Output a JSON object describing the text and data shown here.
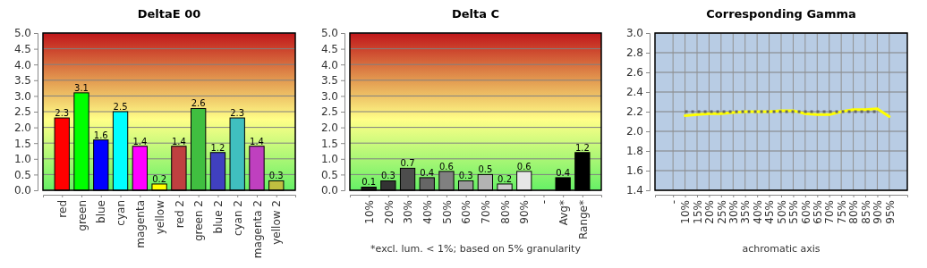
{
  "chart_data": [
    {
      "type": "bar",
      "title": "DeltaE 00",
      "categories": [
        "red",
        "green",
        "blue",
        "cyan",
        "magenta",
        "yellow",
        "red 2",
        "green 2",
        "blue 2",
        "cyan 2",
        "magenta 2",
        "yellow 2"
      ],
      "values": [
        2.3,
        3.1,
        1.6,
        2.5,
        1.4,
        0.2,
        1.4,
        2.6,
        1.2,
        2.3,
        1.4,
        0.3
      ],
      "colors": [
        "#ff0000",
        "#00ff00",
        "#0000ff",
        "#00ffff",
        "#ff00ff",
        "#ffff00",
        "#bf4040",
        "#40bf40",
        "#4040bf",
        "#40bfbf",
        "#bf40bf",
        "#bfbf40"
      ],
      "ylim": [
        0,
        5
      ],
      "yticks": [
        {
          "value": 0,
          "label": "0.0"
        },
        {
          "value": 0.5,
          "label": "0.5"
        },
        {
          "value": 1,
          "label": "1.0"
        },
        {
          "value": 1.5,
          "label": "1.5"
        },
        {
          "value": 2,
          "label": "2.0"
        },
        {
          "value": 2.5,
          "label": "2.5"
        },
        {
          "value": 3,
          "label": "3.0"
        },
        {
          "value": 3.5,
          "label": "3.5"
        },
        {
          "value": 4,
          "label": "4.0"
        },
        {
          "value": 4.5,
          "label": "4.5"
        },
        {
          "value": 5,
          "label": "5.0"
        }
      ],
      "grid": "y",
      "data_labels": true
    },
    {
      "type": "bar",
      "title": "Delta C",
      "categories": [
        "10%",
        "20%",
        "30%",
        "40%",
        "50%",
        "60%",
        "70%",
        "80%",
        "90%",
        "-",
        "Avg*",
        "Range*"
      ],
      "values": [
        0.1,
        0.3,
        0.7,
        0.4,
        0.6,
        0.3,
        0.5,
        0.2,
        0.6,
        null,
        0.4,
        1.2
      ],
      "colors": [
        "#1a1a1a",
        "#333333",
        "#4d4d4d",
        "#666666",
        "#808080",
        "#999999",
        "#b3b3b3",
        "#cccccc",
        "#e6e6e6",
        null,
        "#000000",
        "#000000"
      ],
      "ylim": [
        0,
        5
      ],
      "yticks": [
        {
          "value": 0,
          "label": "0.0"
        },
        {
          "value": 0.5,
          "label": "0.5"
        },
        {
          "value": 1,
          "label": "1.0"
        },
        {
          "value": 1.5,
          "label": "1.5"
        },
        {
          "value": 2,
          "label": "2.0"
        },
        {
          "value": 2.5,
          "label": "2.5"
        },
        {
          "value": 3,
          "label": "3.0"
        },
        {
          "value": 3.5,
          "label": "3.5"
        },
        {
          "value": 4,
          "label": "4.0"
        },
        {
          "value": 4.5,
          "label": "4.5"
        },
        {
          "value": 5,
          "label": "5.0"
        }
      ],
      "grid": "y",
      "data_labels": true,
      "annotations": [
        "*excl. lum. < 1%; based on 5% granularity"
      ]
    },
    {
      "type": "line",
      "title": "Corresponding Gamma",
      "xlabel": "achromatic axis",
      "categories": [
        "-",
        "10%",
        "15%",
        "20%",
        "25%",
        "30%",
        "35%",
        "40%",
        "45%",
        "50%",
        "55%",
        "60%",
        "65%",
        "70%",
        "75%",
        "80%",
        "85%",
        "90%",
        "95%"
      ],
      "series": [
        {
          "color": "#ffff00",
          "line_style": "solid",
          "values": [
            null,
            2.16,
            2.17,
            2.18,
            2.18,
            2.19,
            2.2,
            2.2,
            2.2,
            2.21,
            2.21,
            2.18,
            2.17,
            2.17,
            2.2,
            2.22,
            2.22,
            2.23,
            2.15
          ]
        },
        {
          "color": "#666666",
          "line_style": "dotted",
          "values": [
            null,
            2.2,
            2.2,
            2.2,
            2.2,
            2.2,
            2.2,
            2.2,
            2.2,
            2.2,
            2.2,
            2.2,
            2.2,
            2.2,
            2.2,
            2.2,
            2.2,
            2.2,
            null
          ]
        }
      ],
      "ylim": [
        1.4,
        3
      ],
      "yticks": [
        {
          "value": 1.4,
          "label": "1.4"
        },
        {
          "value": 1.6,
          "label": "1.6"
        },
        {
          "value": 1.8,
          "label": "1.8"
        },
        {
          "value": 2,
          "label": "2.0"
        },
        {
          "value": 2.2,
          "label": "2.2"
        },
        {
          "value": 2.4,
          "label": "2.4"
        },
        {
          "value": 2.6,
          "label": "2.6"
        },
        {
          "value": 2.8,
          "label": "2.8"
        },
        {
          "value": 3,
          "label": "3.0"
        }
      ],
      "grid": true,
      "marker": "none"
    }
  ]
}
